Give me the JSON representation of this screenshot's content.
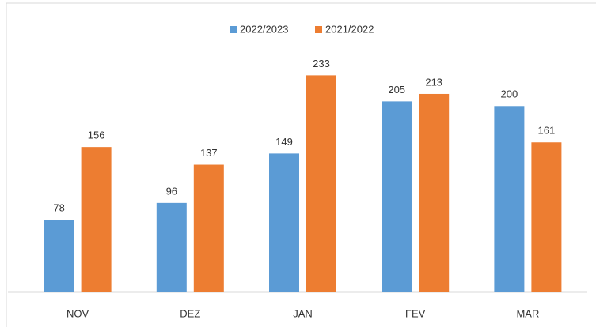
{
  "chart_data": {
    "type": "bar",
    "categories": [
      "NOV",
      "DEZ",
      "JAN",
      "FEV",
      "MAR"
    ],
    "series": [
      {
        "name": "2022/2023",
        "color": "#5b9bd5",
        "values": [
          78,
          96,
          149,
          205,
          200
        ]
      },
      {
        "name": "2021/2022",
        "color": "#ed7d31",
        "values": [
          156,
          137,
          233,
          213,
          161
        ]
      }
    ],
    "ylim": [
      0,
      280
    ],
    "legend": "top"
  }
}
